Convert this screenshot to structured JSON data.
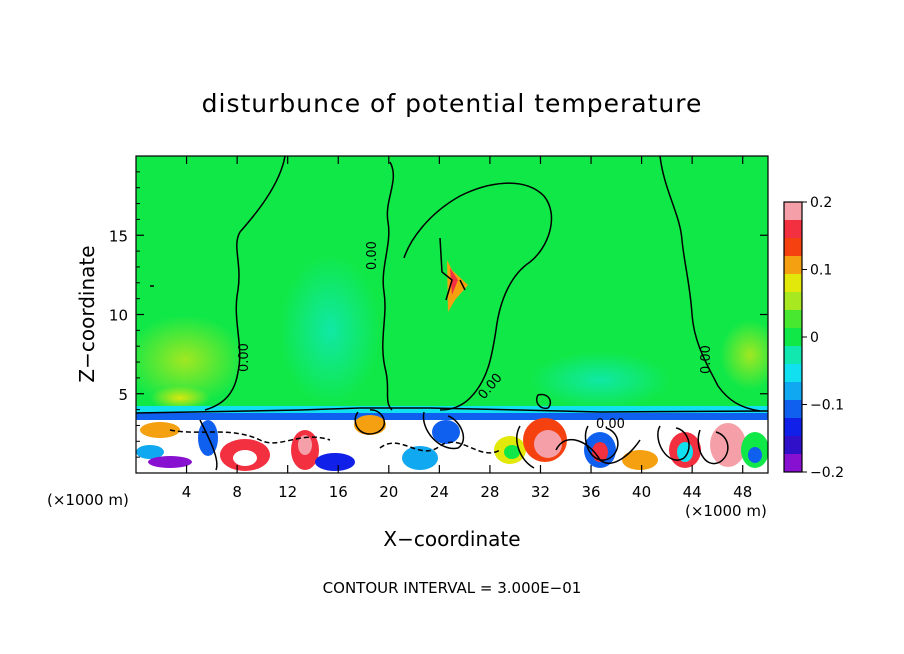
{
  "chart_data": {
    "type": "heatmap",
    "title": "disturbunce of potential temperature",
    "xlabel": "X−coordinate",
    "ylabel": "Z−coordinate",
    "x_unit": "(×1000 m)",
    "x_unit_right": "(×1000 m)",
    "xlim": [
      0,
      50
    ],
    "ylim": [
      0,
      20
    ],
    "x_ticks": [
      4,
      8,
      12,
      16,
      20,
      24,
      28,
      32,
      36,
      40,
      44,
      48
    ],
    "y_ticks": [
      5,
      10,
      15
    ],
    "colorbar": {
      "min": -0.2,
      "max": 0.2,
      "tick_values": [
        0.2,
        0.1,
        0,
        -0.1,
        -0.2
      ],
      "tick_labels": [
        "0.2",
        "0.1",
        "0",
        "−0.1",
        "−0.2"
      ],
      "colors": [
        "#f5a0a8",
        "#f23040",
        "#f54010",
        "#f5a010",
        "#e2e80a",
        "#a8e820",
        "#48e830",
        "#10e848",
        "#10e8b0",
        "#10e0f0",
        "#10a8f0",
        "#1060f0",
        "#1020e8",
        "#3010c8",
        "#8810d0"
      ]
    },
    "contour_labels": [
      "0.00",
      "0.00",
      "0.00",
      "0.00",
      "0.00"
    ],
    "footer": "CONTOUR INTERVAL = 3.000E−01"
  }
}
